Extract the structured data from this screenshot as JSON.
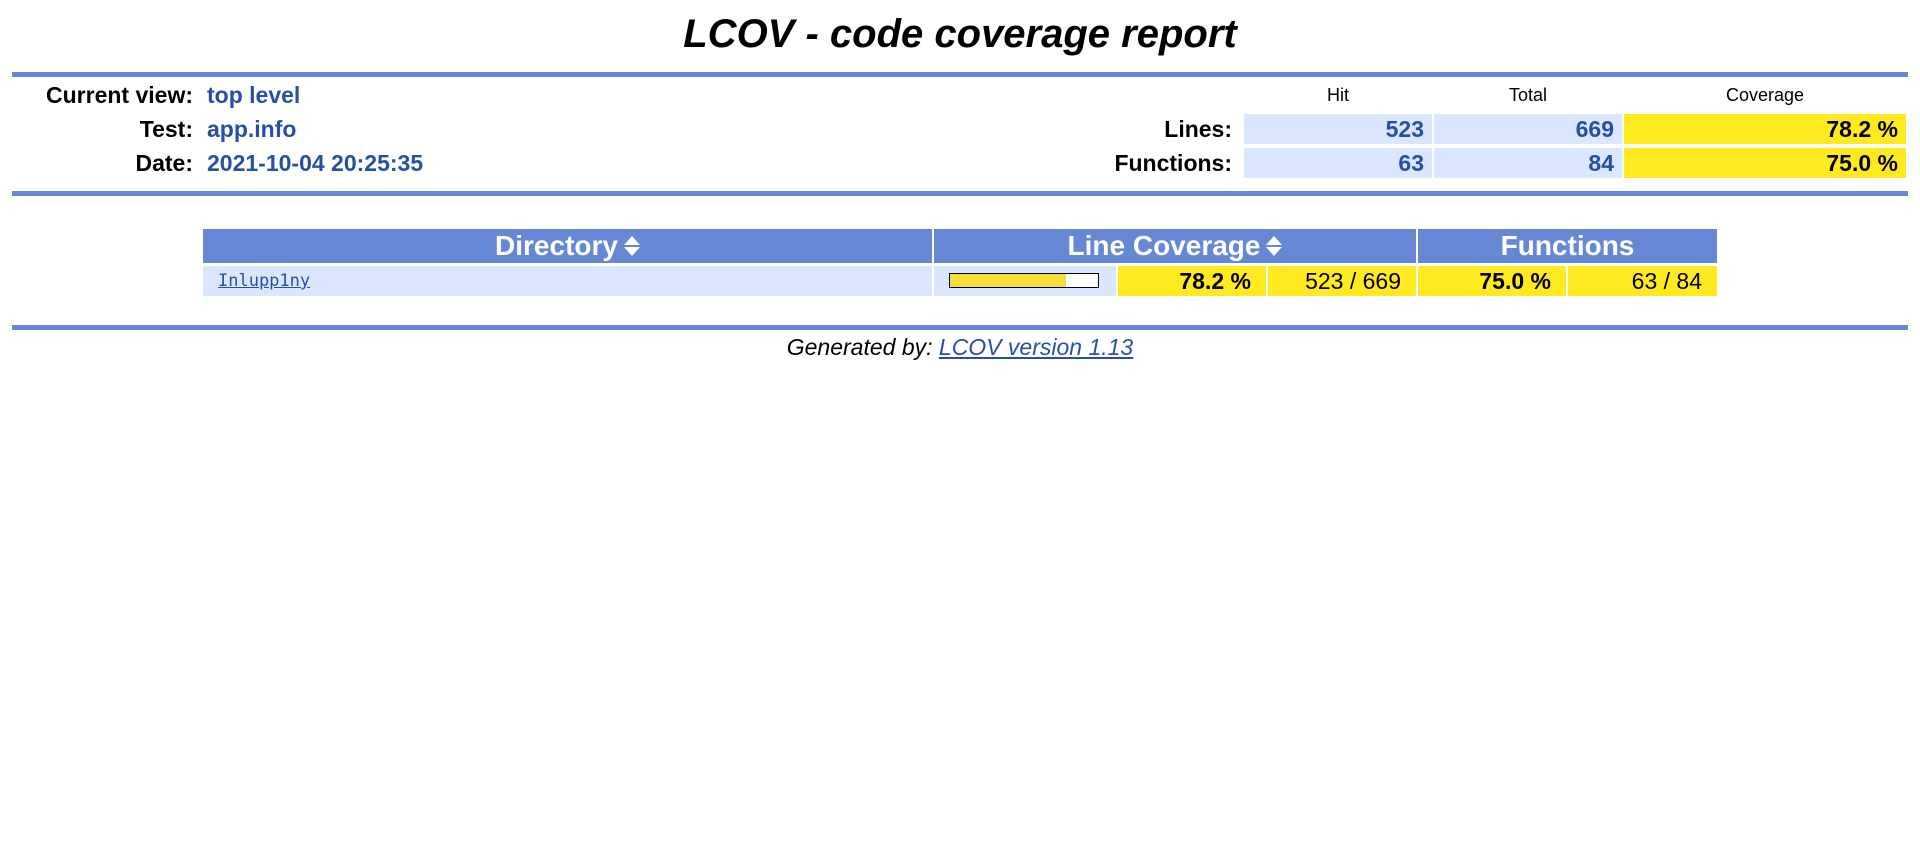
{
  "title": "LCOV - code coverage report",
  "header": {
    "current_view_label": "Current view:",
    "current_view_value": "top level",
    "test_label": "Test:",
    "test_value": "app.info",
    "date_label": "Date:",
    "date_value": "2021-10-04 20:25:35"
  },
  "summary": {
    "col_hit": "Hit",
    "col_total": "Total",
    "col_coverage": "Coverage",
    "lines": {
      "label": "Lines:",
      "hit": "523",
      "total": "669",
      "coverage": "78.2 %"
    },
    "functions": {
      "label": "Functions:",
      "hit": "63",
      "total": "84",
      "coverage": "75.0 %"
    }
  },
  "table": {
    "headers": {
      "directory": "Directory",
      "line_coverage": "Line Coverage",
      "functions": "Functions"
    },
    "rows": [
      {
        "directory": "Inlupp1ny",
        "line_coverage_fraction": 0.782,
        "line_percent": "78.2 %",
        "line_counts": "523 / 669",
        "func_percent": "75.0 %",
        "func_counts": "63 / 84"
      }
    ]
  },
  "footer": {
    "prefix": "Generated by: ",
    "link": "LCOV version 1.13"
  },
  "colors": {
    "rule": "#6688d4",
    "cell_blue": "#dae7fe",
    "cell_yellow": "#ffea20",
    "value_blue": "#284fa8"
  }
}
